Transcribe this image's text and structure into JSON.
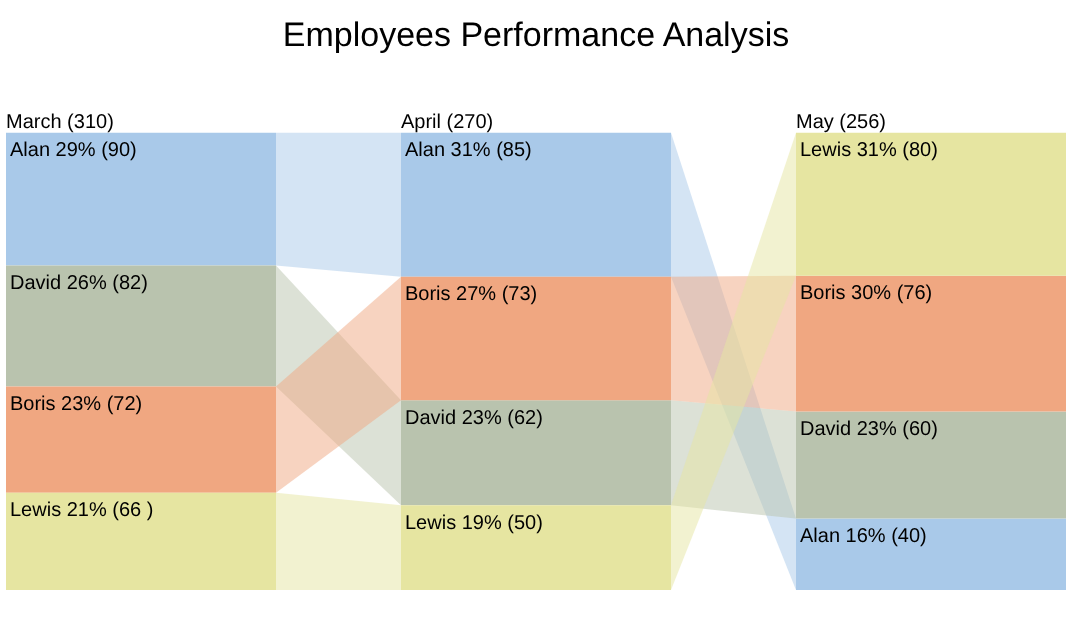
{
  "chart_data": {
    "type": "other",
    "title": "Employees Performance Analysis",
    "categories": [
      "March (310)",
      "April (270)",
      "May (256)"
    ],
    "series": [
      {
        "name": "Alan",
        "color": "#a9c9e9",
        "values": [
          90,
          85,
          40
        ],
        "value_labels": [
          "29% (90)",
          "31% (85)",
          "16% (40)"
        ]
      },
      {
        "name": "David",
        "color": "#b9c3ae",
        "values": [
          82,
          62,
          60
        ],
        "value_labels": [
          "26% (82)",
          "23% (62)",
          "23% (60)"
        ]
      },
      {
        "name": "Boris",
        "color": "#f0a781",
        "values": [
          72,
          73,
          76
        ],
        "value_labels": [
          "23% (72)",
          "27% (73)",
          "30% (76)"
        ]
      },
      {
        "name": "Lewis",
        "color": "#e6e5a1",
        "values": [
          66,
          50,
          80
        ],
        "value_labels": [
          "21% (66 )",
          "19% (50)",
          "31% (80)"
        ]
      }
    ]
  }
}
